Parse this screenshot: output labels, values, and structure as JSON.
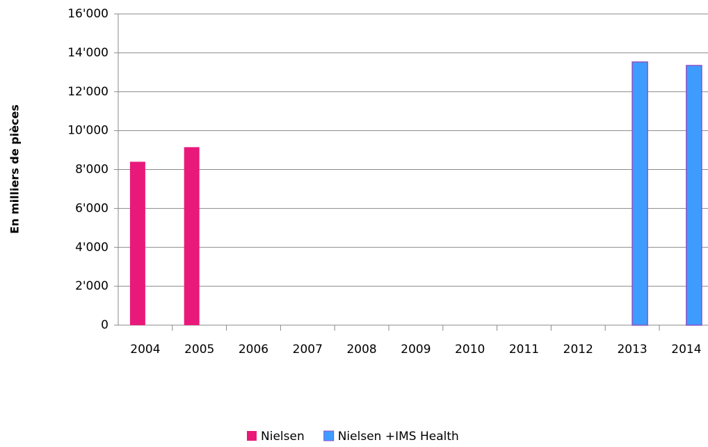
{
  "chart_data": {
    "type": "bar",
    "ylabel": "En milliers de pièces",
    "categories": [
      "2004",
      "2005",
      "2006",
      "2007",
      "2008",
      "2009",
      "2010",
      "2011",
      "2012",
      "2013",
      "2014"
    ],
    "series": [
      {
        "name": "Nielsen",
        "color": "#e8197a",
        "values": [
          8400,
          9150,
          null,
          null,
          null,
          null,
          null,
          null,
          null,
          null,
          null
        ]
      },
      {
        "name": "Nielsen +IMS Health",
        "color": "#3f9cff",
        "edgecolor": "#8a4fc7",
        "values": [
          null,
          null,
          null,
          null,
          null,
          null,
          null,
          null,
          null,
          13530,
          13350
        ]
      }
    ],
    "ylim": [
      0,
      16000
    ],
    "yticks": [
      0,
      {
        "value": 2000,
        "label": "2'000"
      },
      {
        "value": 4000,
        "label": "4'000"
      },
      {
        "value": 6000,
        "label": "6'000"
      },
      {
        "value": 8000,
        "label": "8'000"
      },
      {
        "value": 10000,
        "label": "10'000"
      },
      {
        "value": 12000,
        "label": "12'000"
      },
      {
        "value": 14000,
        "label": "14'000"
      },
      {
        "value": 16000,
        "label": "16'000"
      }
    ],
    "grid": true,
    "legend": "bottom"
  }
}
